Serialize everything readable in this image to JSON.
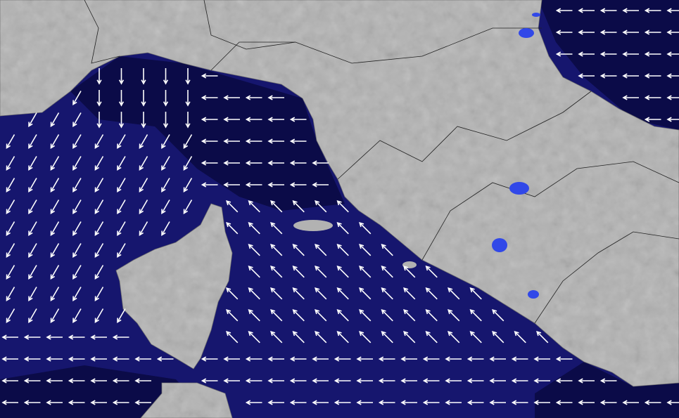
{
  "colors": {
    "sea_main": "#16166e",
    "sea_dark": "#0b0b48",
    "land": "#b2b2b2",
    "land_shade": "#9a9a9a",
    "border": "#222222",
    "lake": "#3148e8",
    "arrow": "#ffffff"
  },
  "wave_direction_zones": [
    {
      "zone": "ligurian-sea-north",
      "arrow_points": "south"
    },
    {
      "zone": "ligurian-sea-west",
      "arrow_points": "south-west"
    },
    {
      "zone": "ligurian-coast-east",
      "arrow_points": "west"
    },
    {
      "zone": "tyrrhenian-sea",
      "arrow_points": "north-west"
    },
    {
      "zone": "south-open-sea",
      "arrow_points": "west"
    },
    {
      "zone": "adriatic-sea",
      "arrow_points": "west"
    }
  ]
}
